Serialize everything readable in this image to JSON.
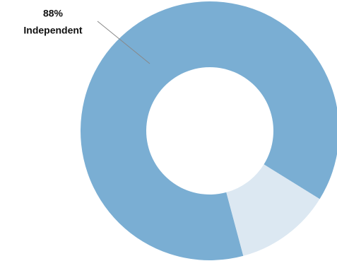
{
  "chart_data": {
    "type": "pie",
    "donut": true,
    "categories": [
      "Independent",
      null
    ],
    "values": [
      88,
      12
    ],
    "value_labels": [
      "88%",
      null
    ],
    "colors": [
      "#7aaed3",
      "#dce8f2"
    ]
  }
}
